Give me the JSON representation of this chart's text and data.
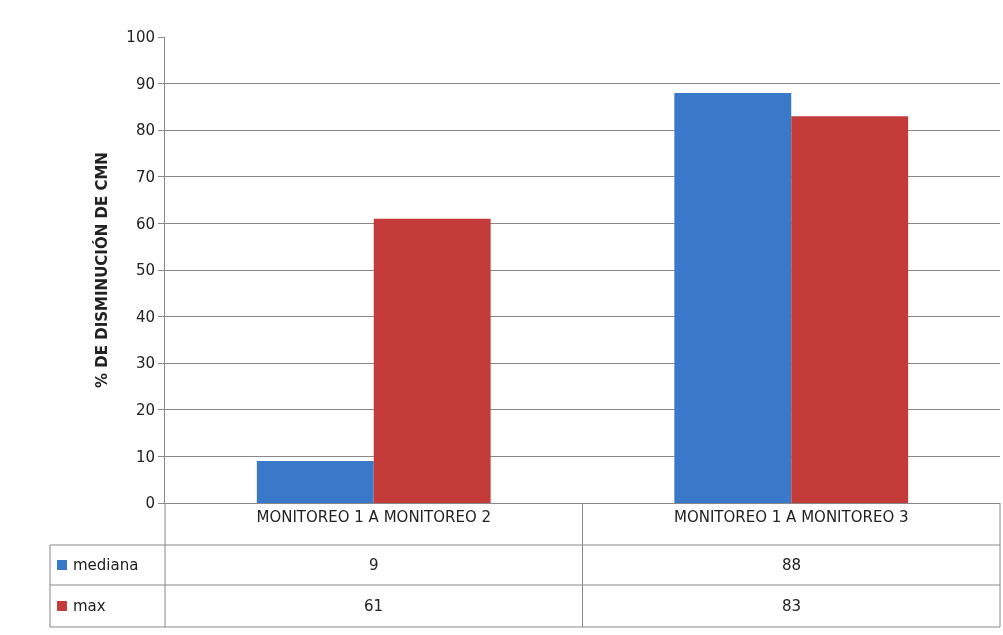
{
  "chart_data": {
    "type": "bar",
    "ylabel": "% DE DISMINUCIÓN DE CMN",
    "categories": [
      "MONITOREO 1 A MONITOREO 2",
      "MONITOREO 1 A MONITOREO 3"
    ],
    "series": [
      {
        "name": "mediana",
        "color": "#3a78c9",
        "values": [
          9,
          88
        ]
      },
      {
        "name": "max",
        "color": "#c43c3a",
        "values": [
          61,
          83
        ]
      }
    ],
    "ylim": [
      0,
      100
    ],
    "yticks": [
      0,
      10,
      20,
      30,
      40,
      50,
      60,
      70,
      80,
      90,
      100
    ],
    "grid": "y",
    "data_labels": true,
    "legend": "bottom left"
  }
}
